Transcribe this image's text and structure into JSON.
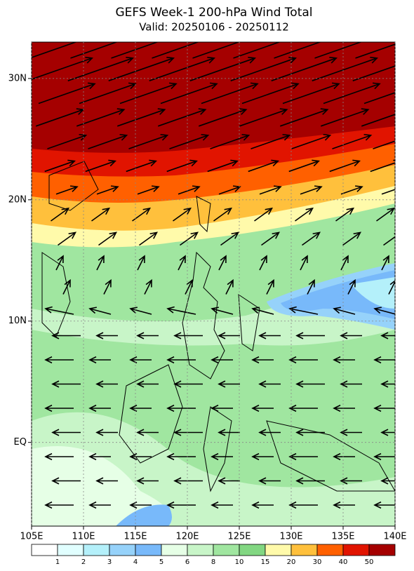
{
  "title": "GEFS Week-1 200-hPa Wind Total",
  "subtitle": "Valid: 20250106 - 20250112",
  "map": {
    "xlim": [
      105,
      140
    ],
    "ylim": [
      -6.9,
      33
    ],
    "xticks": [
      {
        "value": 105,
        "label": "105E"
      },
      {
        "value": 110,
        "label": "110E"
      },
      {
        "value": 115,
        "label": "115E"
      },
      {
        "value": 120,
        "label": "120E"
      },
      {
        "value": 125,
        "label": "125E"
      },
      {
        "value": 130,
        "label": "130E"
      },
      {
        "value": 135,
        "label": "135E"
      },
      {
        "value": 140,
        "label": "140E"
      }
    ],
    "yticks": [
      {
        "value": 0,
        "label": "EQ"
      },
      {
        "value": 10,
        "label": "10N"
      },
      {
        "value": 20,
        "label": "20N"
      },
      {
        "value": 30,
        "label": "30N"
      }
    ],
    "grid": true
  },
  "colorbar": {
    "levels": [
      1,
      2,
      3,
      4,
      5,
      6,
      8,
      10,
      15,
      20,
      30,
      40,
      50
    ],
    "colors": [
      "#ffffff",
      "#e1ffff",
      "#b4f0fa",
      "#96d2fa",
      "#78b9fa",
      "#e6ffe6",
      "#c8f5c8",
      "#a0e6a0",
      "#82d782",
      "#fffaaa",
      "#ffc03c",
      "#ff6000",
      "#e11400",
      "#a50000"
    ]
  }
}
